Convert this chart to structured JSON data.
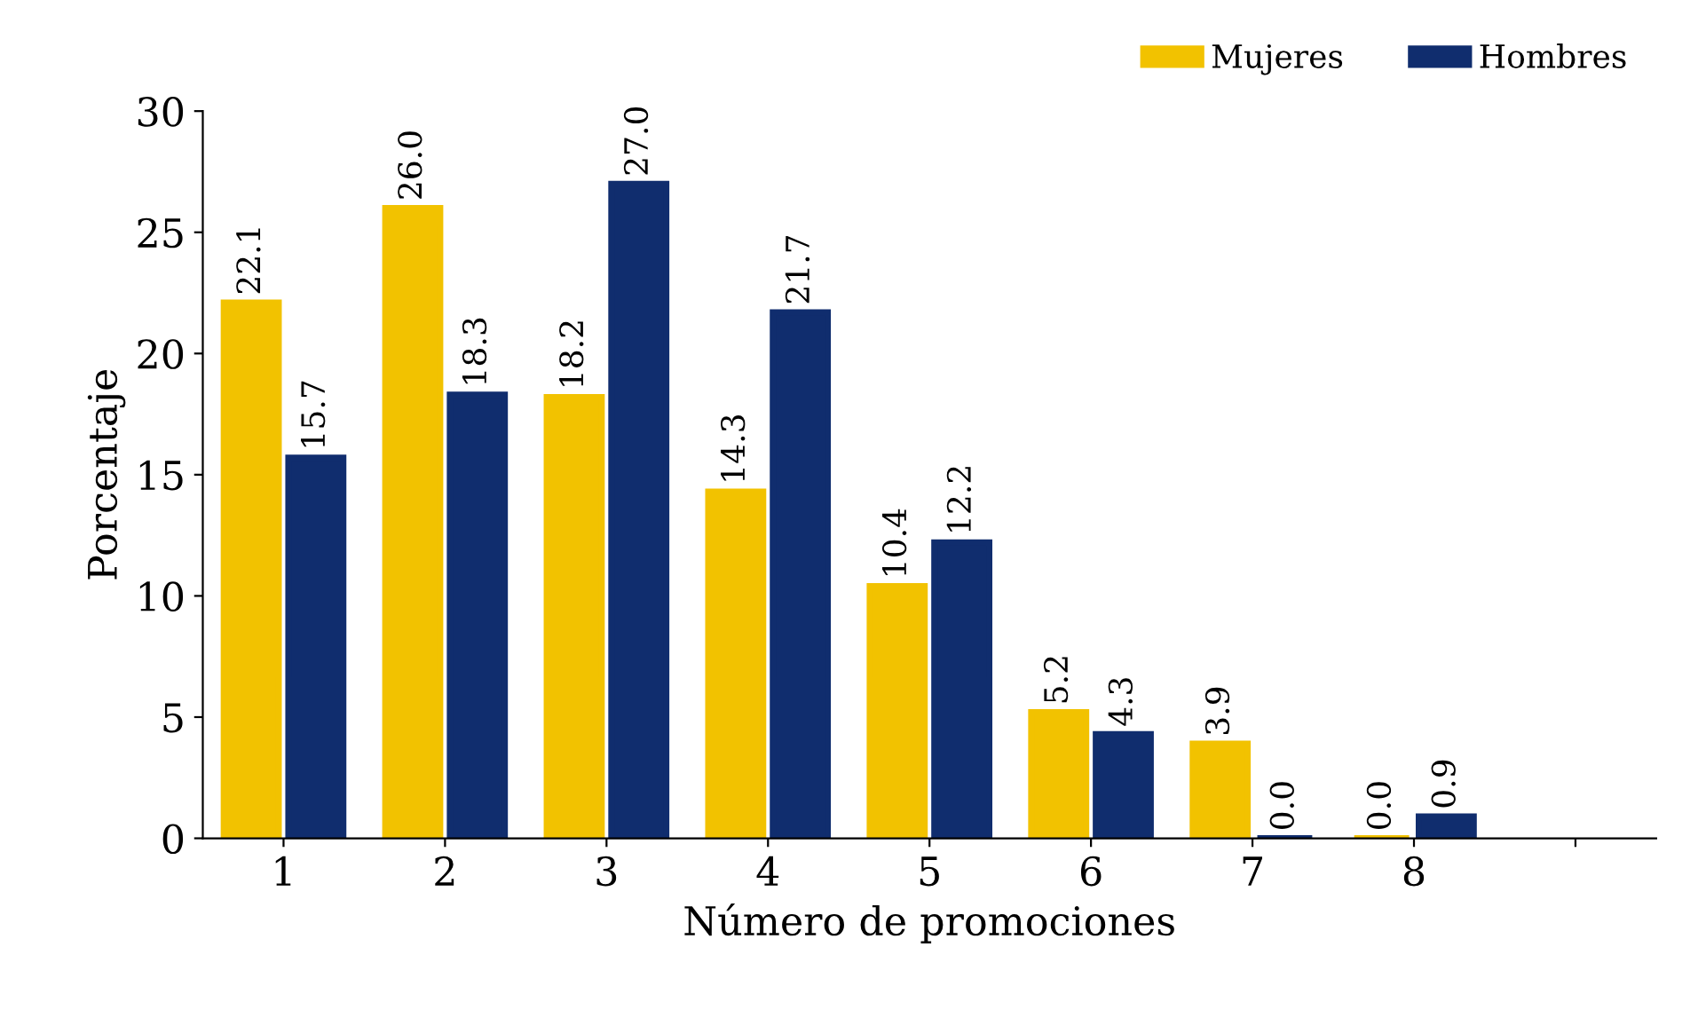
{
  "chart_data": {
    "type": "bar",
    "xlabel": "Número de promociones",
    "ylabel": "Porcentaje",
    "categories": [
      "1",
      "2",
      "3",
      "4",
      "5",
      "6",
      "7",
      "8",
      null
    ],
    "series": [
      {
        "name": "Mujeres",
        "color": "#f2c200",
        "values": [
          22.1,
          26.0,
          18.2,
          14.3,
          10.4,
          5.2,
          3.9,
          0.0,
          null
        ],
        "value_labels": [
          "22.1",
          "26.0",
          "18.2",
          "14.3",
          "10.4",
          "5.2",
          "3.9",
          "0.0",
          null
        ]
      },
      {
        "name": "Hombres",
        "color": "#102d6e",
        "values": [
          15.7,
          18.3,
          27.0,
          21.7,
          12.2,
          4.3,
          0.0,
          0.9,
          null
        ],
        "value_labels": [
          "15.7",
          "18.3",
          "27.0",
          "21.7",
          "12.2",
          "4.3",
          "0.0",
          "0.9",
          null
        ]
      }
    ],
    "ylim": [
      0,
      30
    ],
    "yticks": [
      0,
      5,
      10,
      15,
      20,
      25,
      30
    ],
    "grid": false,
    "legend": "top right"
  }
}
